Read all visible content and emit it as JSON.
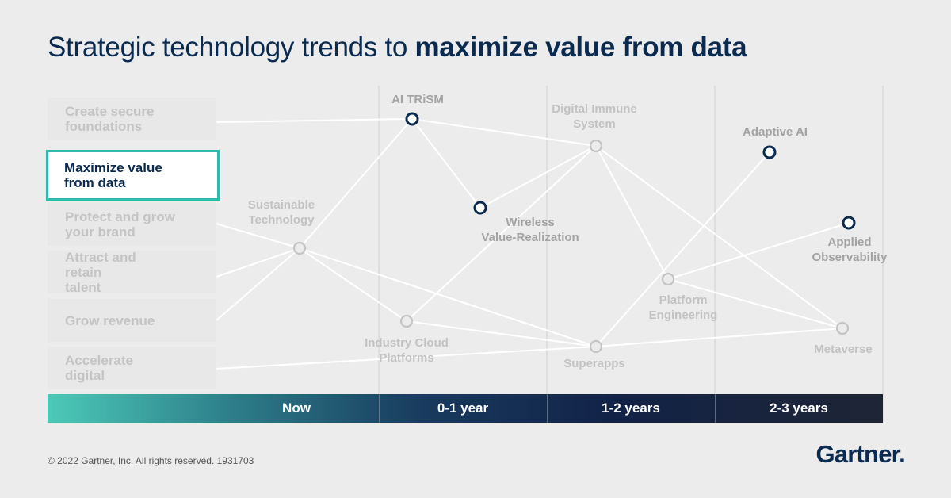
{
  "title": {
    "prefix": "Strategic technology trends to ",
    "emphasis": "maximize value from data"
  },
  "goals": [
    {
      "label": "Create secure foundations",
      "active": false
    },
    {
      "label": "Maximize value from data",
      "active": true
    },
    {
      "label": "Protect and grow your brand",
      "active": false
    },
    {
      "label": "Attract and retain talent",
      "active": false
    },
    {
      "label": "Grow revenue",
      "active": false
    },
    {
      "label": "Accelerate digital",
      "active": false
    }
  ],
  "timeline": [
    "Now",
    "0-1 year",
    "1-2 years",
    "2-3 years"
  ],
  "trends": [
    {
      "id": "sustainable",
      "label": "Sustainable Technology",
      "period": "Now",
      "highlighted": false
    },
    {
      "id": "aitrism",
      "label": "AI TRiSM",
      "period": "0-1 year",
      "highlighted": true
    },
    {
      "id": "wireless",
      "label": "Wireless Value-Realization",
      "period": "0-1 year",
      "highlighted": true
    },
    {
      "id": "industry",
      "label": "Industry Cloud Platforms",
      "period": "0-1 year",
      "highlighted": false
    },
    {
      "id": "immune",
      "label": "Digital Immune System",
      "period": "1-2 years",
      "highlighted": false
    },
    {
      "id": "superapps",
      "label": "Superapps",
      "period": "1-2 years",
      "highlighted": false
    },
    {
      "id": "platform",
      "label": "Platform Engineering",
      "period": "1-2 years",
      "highlighted": false
    },
    {
      "id": "adaptive",
      "label": "Adaptive AI",
      "period": "2-3 years",
      "highlighted": true
    },
    {
      "id": "observability",
      "label": "Applied Observability",
      "period": "2-3 years",
      "highlighted": true
    },
    {
      "id": "metaverse",
      "label": "Metaverse",
      "period": "2-3 years",
      "highlighted": false
    }
  ],
  "colors": {
    "navy": "#0b2a4f",
    "teal": "#2bbbad",
    "faded": "#c4c4c4",
    "line": "#ffffff"
  },
  "footer": {
    "copyright": "© 2022 Gartner, Inc. All rights reserved. 1931703",
    "logo": "Gartner."
  }
}
